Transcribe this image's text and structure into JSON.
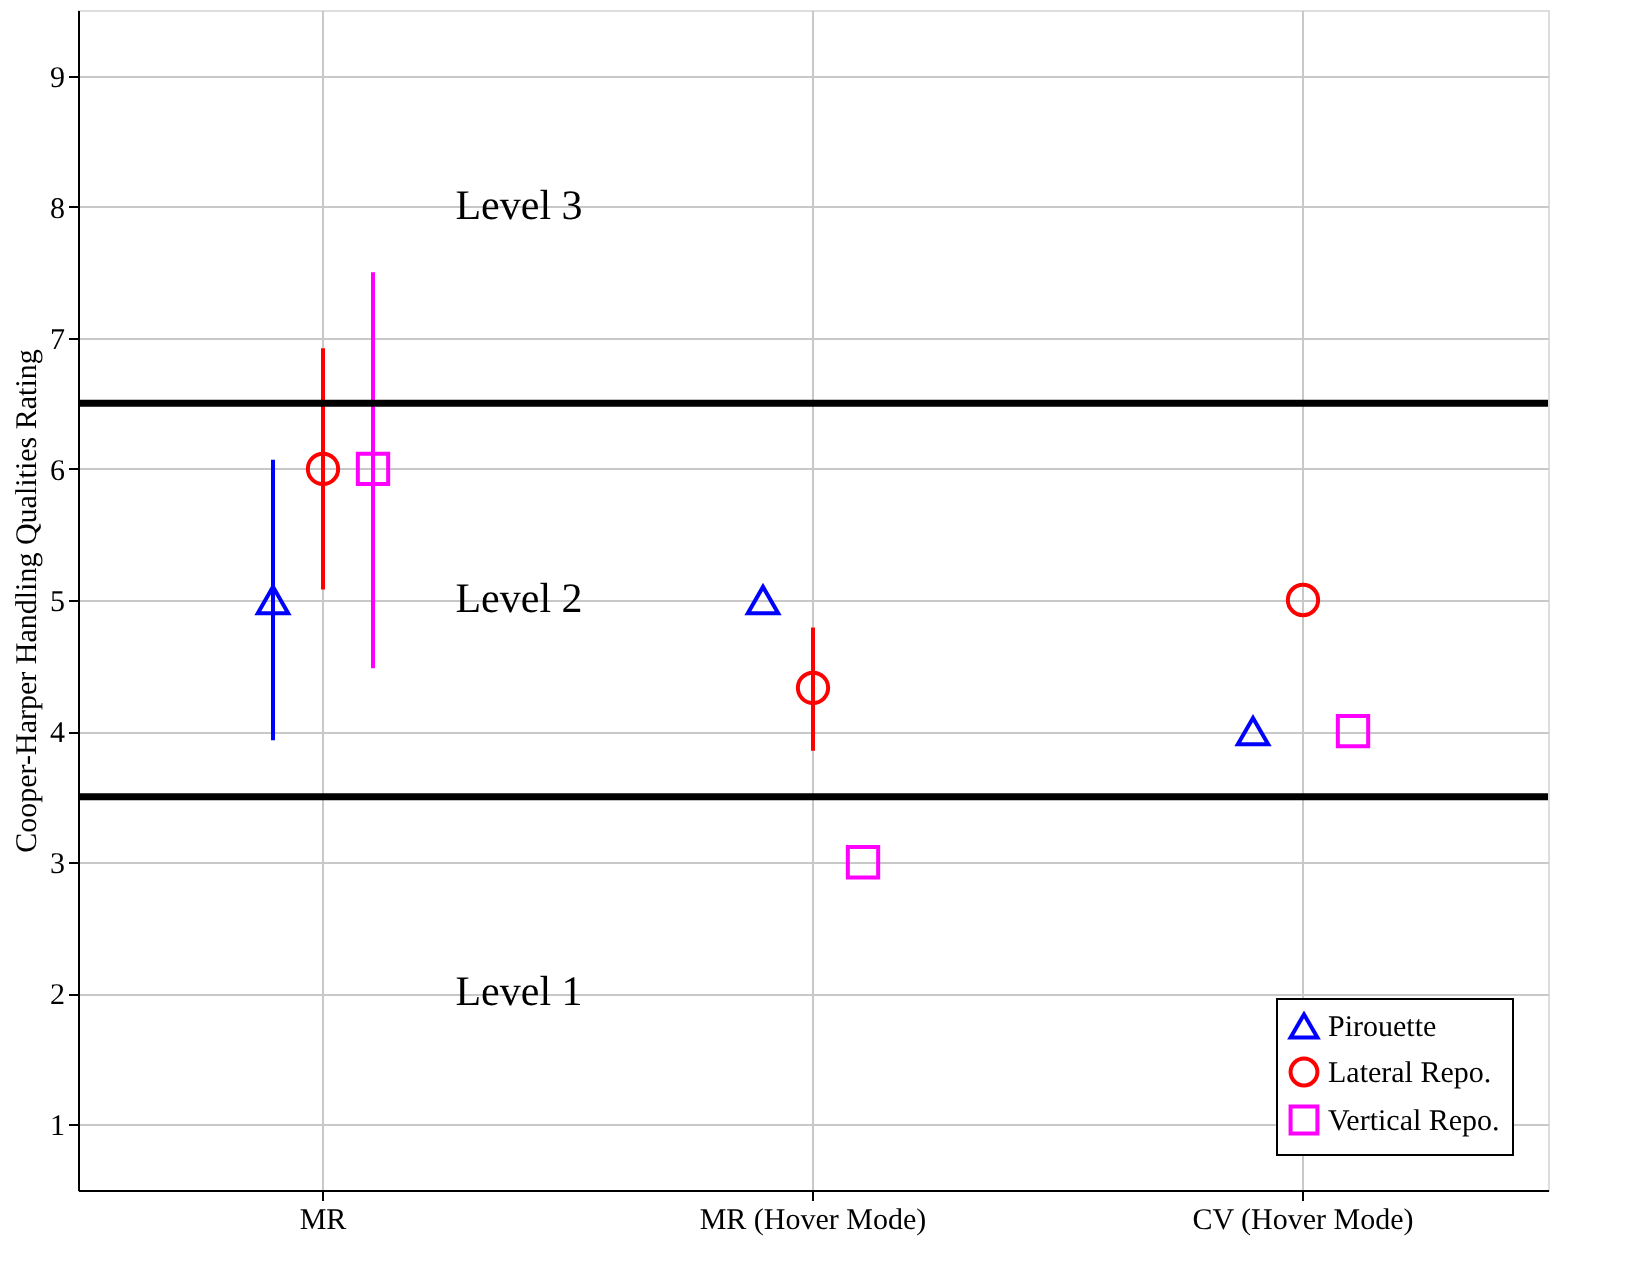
{
  "chart_data": {
    "type": "scatter",
    "ylabel": "Cooper-Harper Handling Qualities Rating",
    "categories": [
      "MR",
      "MR (Hover Mode)",
      "CV (Hover Mode)"
    ],
    "series": [
      {
        "name": "Pirouette",
        "color": "#0000ff",
        "marker": "triangle",
        "values": [
          5,
          5,
          4
        ],
        "errors": [
          [
            3.93,
            6.07
          ],
          null,
          null
        ]
      },
      {
        "name": "Lateral Repo.",
        "color": "#ff0000",
        "marker": "circle",
        "values": [
          6,
          4.33,
          5
        ],
        "errors": [
          [
            5.08,
            6.92
          ],
          [
            3.85,
            4.79
          ],
          null
        ]
      },
      {
        "name": "Vertical Repo.",
        "color": "#ff00ff",
        "marker": "square",
        "values": [
          6,
          3,
          4
        ],
        "errors": [
          [
            4.48,
            7.5
          ],
          null,
          null
        ]
      }
    ],
    "ylim": [
      0.5,
      9.5
    ],
    "yticks": [
      1,
      2,
      3,
      4,
      5,
      6,
      7,
      8,
      9
    ],
    "grid": true,
    "legend": "bottom right",
    "ref_lines": [
      {
        "axis": "y",
        "value": 3.5,
        "color": "#000000"
      },
      {
        "axis": "y",
        "value": 6.5,
        "color": "#000000"
      }
    ],
    "annotations": [
      "Level 3",
      "Level 2",
      "Level 1"
    ]
  }
}
